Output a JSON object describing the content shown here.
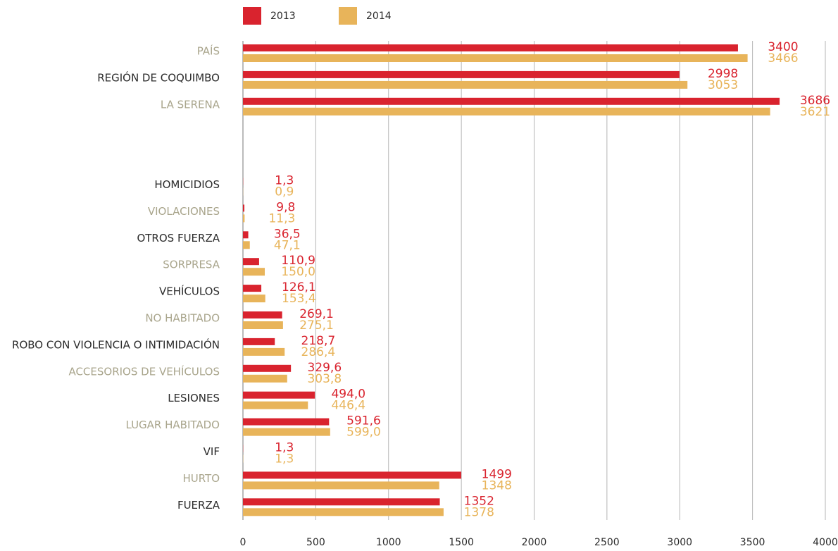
{
  "chart_data": {
    "type": "barh",
    "categories": [
      "PAÍS",
      "REGIÓN DE COQUIMBO",
      "LA SERENA",
      null,
      null,
      "HOMICIDIOS",
      "VIOLACIONES",
      "OTROS FUERZA",
      "SORPRESA",
      "VEHÍCULOS",
      "NO HABITADO",
      "ROBO CON VIOLENCIA O INTIMIDACIÓN",
      "ACCESORIOS DE VEHÍCULOS",
      "LESIONES",
      "LUGAR HABITADO",
      "VIF",
      "HURTO",
      "FUERZA"
    ],
    "series": [
      {
        "name": "2013",
        "color": "#d9232e",
        "values": [
          3400,
          2998,
          3686,
          null,
          null,
          1.3,
          9.8,
          36.5,
          110.9,
          126.1,
          269.1,
          218.7,
          329.6,
          494.0,
          591.6,
          1.3,
          1499,
          1352
        ],
        "value_labels": [
          "3400",
          "2998",
          "3686",
          null,
          null,
          "1,3",
          "9,8",
          "36,5",
          "110,9",
          "126,1",
          "269,1",
          "218,7",
          "329,6",
          "494,0",
          "591,6",
          "1,3",
          "1499",
          "1352"
        ]
      },
      {
        "name": "2014",
        "color": "#e8b45a",
        "values": [
          3466,
          3053,
          3621,
          null,
          null,
          0.9,
          11.3,
          47.1,
          150.0,
          153.4,
          275.1,
          286.4,
          303.8,
          446.4,
          599.0,
          1.3,
          1348,
          1378
        ],
        "value_labels": [
          "3466",
          "3053",
          "3621",
          null,
          null,
          "0,9",
          "11,3",
          "47,1",
          "150,0",
          "153,4",
          "275,1",
          "286,4",
          "303,8",
          "446,4",
          "599,0",
          "1,3",
          "1348",
          "1378"
        ]
      }
    ],
    "xlim": [
      0,
      4000
    ],
    "xticks": [
      0,
      500,
      1000,
      1500,
      2000,
      2500,
      3000,
      3500,
      4000
    ],
    "grid": true
  }
}
